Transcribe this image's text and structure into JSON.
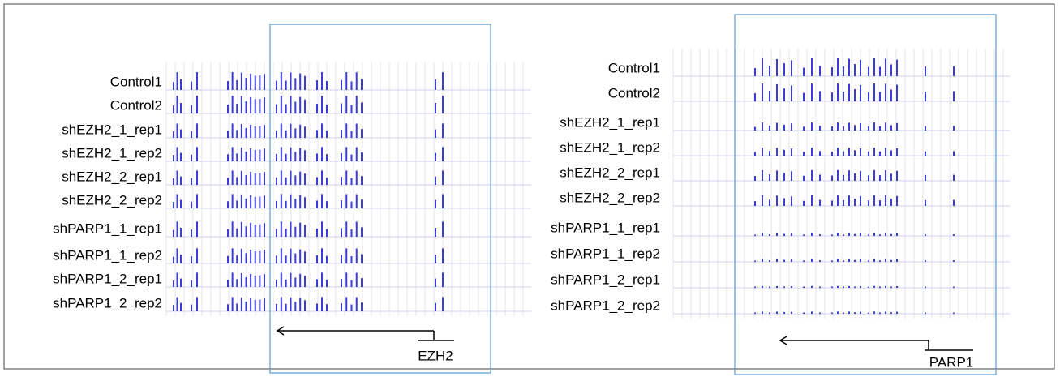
{
  "panels": [
    {
      "track_labels": [
        "Control1",
        "Control2",
        "shEZH2_1_rep1",
        "shEZH2_1_rep2",
        "shEZH2_2_rep1",
        "shEZH2_2_rep2",
        "shPARP1_1_rep1",
        "shPARP1_1_rep2",
        "shPARP1_2_rep1",
        "shPARP1_2_rep2"
      ],
      "gene": "EZH2"
    },
    {
      "track_labels": [
        "Control1",
        "Control2",
        "shEZH2_1_rep1",
        "shEZH2_1_rep2",
        "shEZH2_2_rep1",
        "shEZH2_2_rep2",
        "shPARP1_1_rep1",
        "shPARP1_1_rep2",
        "shPARP1_2_rep1",
        "shPARP1_2_rep2"
      ],
      "gene": "PARP1"
    }
  ]
}
